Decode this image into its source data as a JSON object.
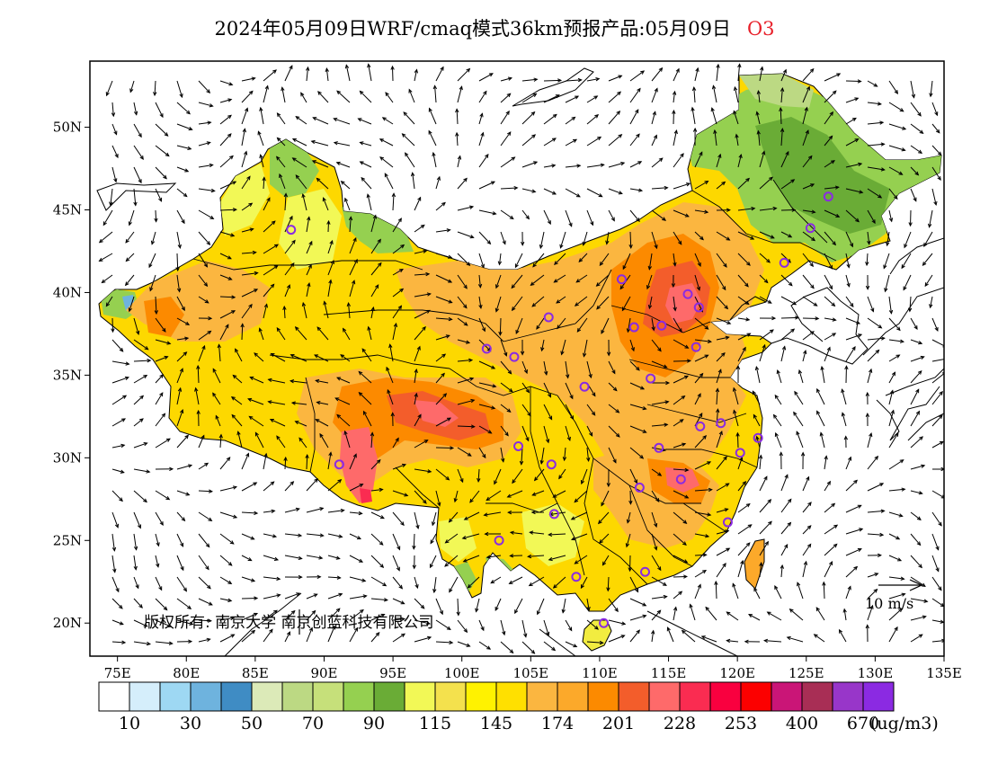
{
  "title": {
    "main": "2024年05月09日WRF/cmaq模式36km预报产品:05月09日",
    "pollutant": "O3"
  },
  "map": {
    "lon_range": [
      73,
      135
    ],
    "lat_range": [
      18,
      54
    ],
    "x_ticks": [
      "75E",
      "80E",
      "85E",
      "90E",
      "95E",
      "100E",
      "105E",
      "110E",
      "115E",
      "120E",
      "125E",
      "130E",
      "135E"
    ],
    "x_tick_values": [
      75,
      80,
      85,
      90,
      95,
      100,
      105,
      110,
      115,
      120,
      125,
      130,
      135
    ],
    "y_ticks": [
      "20N",
      "25N",
      "30N",
      "35N",
      "40N",
      "45N",
      "50N"
    ],
    "y_tick_values": [
      20,
      25,
      30,
      35,
      40,
      45,
      50
    ],
    "copyright": "版权所有: 南京大学  南京创蓝科技有限公司",
    "wind_reference": "10 m/s",
    "stations": [
      [
        87.6,
        43.8
      ],
      [
        91.1,
        29.6
      ],
      [
        101.8,
        36.6
      ],
      [
        103.8,
        36.1
      ],
      [
        106.3,
        38.5
      ],
      [
        111.6,
        40.8
      ],
      [
        116.4,
        39.9
      ],
      [
        117.2,
        39.1
      ],
      [
        114.5,
        38.0
      ],
      [
        112.5,
        37.9
      ],
      [
        117.0,
        36.7
      ],
      [
        113.7,
        34.8
      ],
      [
        108.9,
        34.3
      ],
      [
        117.3,
        31.9
      ],
      [
        118.8,
        32.1
      ],
      [
        121.5,
        31.2
      ],
      [
        120.2,
        30.3
      ],
      [
        114.3,
        30.6
      ],
      [
        104.1,
        30.7
      ],
      [
        106.5,
        29.6
      ],
      [
        112.9,
        28.2
      ],
      [
        115.9,
        28.7
      ],
      [
        119.3,
        26.1
      ],
      [
        106.7,
        26.6
      ],
      [
        102.7,
        25.0
      ],
      [
        108.3,
        22.8
      ],
      [
        113.3,
        23.1
      ],
      [
        110.3,
        20.0
      ],
      [
        123.4,
        41.8
      ],
      [
        125.3,
        43.9
      ],
      [
        126.6,
        45.8
      ]
    ]
  },
  "colorbar": {
    "colors": [
      "#ffffff",
      "#d5eefb",
      "#9ed8f3",
      "#6eb3de",
      "#3f8cc4",
      "#dceab8",
      "#bcd983",
      "#c6e07a",
      "#95d050",
      "#6aac36",
      "#f2f856",
      "#f4e14d",
      "#fff200",
      "#ffe000",
      "#fbb640",
      "#fca92a",
      "#fc8a00",
      "#f35d2b",
      "#fe6a6a",
      "#fa2c51",
      "#f9003f",
      "#fc0000",
      "#ca1577",
      "#a82e55",
      "#9836c9",
      "#8b2ae2"
    ],
    "labels": [
      "10",
      "30",
      "50",
      "70",
      "90",
      "115",
      "145",
      "174",
      "201",
      "228",
      "253",
      "400",
      "670"
    ],
    "unit": "(ug/m3)"
  }
}
